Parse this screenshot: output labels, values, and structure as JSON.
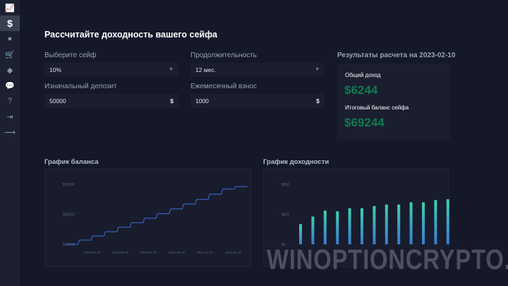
{
  "sidebar": {
    "items": [
      {
        "icon": "chart-line-icon",
        "glyph": "📈"
      },
      {
        "icon": "dollar-icon",
        "glyph": "$",
        "active": true
      },
      {
        "icon": "user-icon",
        "glyph": "●"
      },
      {
        "icon": "cart-icon",
        "glyph": "🛒"
      },
      {
        "icon": "diamond-icon",
        "glyph": "◆"
      },
      {
        "icon": "chat-icon",
        "glyph": "💬"
      },
      {
        "icon": "help-icon",
        "glyph": "?"
      },
      {
        "icon": "logout-icon",
        "glyph": "⇥"
      },
      {
        "icon": "arrow-right-icon",
        "glyph": "⟶"
      }
    ]
  },
  "page": {
    "title": "Рассчитайте доходность вашего сейфа"
  },
  "form": {
    "safe_label": "Выберите сейф",
    "safe_value": "10%",
    "duration_label": "Продолжительность",
    "duration_value": "12 мес.",
    "deposit_label": "Изначальный депозит",
    "deposit_value": "50000",
    "deposit_currency": "$",
    "monthly_label": "Ежемесячный взнос",
    "monthly_value": "1000",
    "monthly_currency": "$"
  },
  "results": {
    "title": "Результаты расчета на 2023-02-10",
    "income_label": "Общий доход",
    "income_value": "$6244",
    "balance_label": "Итоговый баланс сейфа",
    "balance_value": "$69244",
    "value_color": "#0e7a52"
  },
  "chart_data": [
    {
      "type": "line",
      "title": "График баланса",
      "yticks": [
        "$70000",
        "$60000",
        "$50000"
      ],
      "ylim": [
        50000,
        70000
      ],
      "xticks": [
        "2022-03-10",
        "2022-05-10",
        "2022-07-10",
        "2022-09-10",
        "2022-11-10",
        "2023-01-10"
      ],
      "values": [
        50000,
        51400,
        52800,
        54200,
        55700,
        57200,
        58700,
        60200,
        61800,
        63400,
        65000,
        66700,
        68400,
        69244
      ],
      "color": "#3a6fd8"
    },
    {
      "type": "bar",
      "title": "График доходности",
      "yticks": [
        "$800",
        "$400",
        "$0"
      ],
      "ylim": [
        0,
        800
      ],
      "values": [
        270,
        370,
        450,
        440,
        480,
        480,
        510,
        530,
        530,
        560,
        560,
        590,
        600
      ],
      "color_top": "#3fd0b0",
      "color_bottom": "#3a7ad0"
    }
  ],
  "watermark": "WINOPTIONCRYPTO.COM"
}
